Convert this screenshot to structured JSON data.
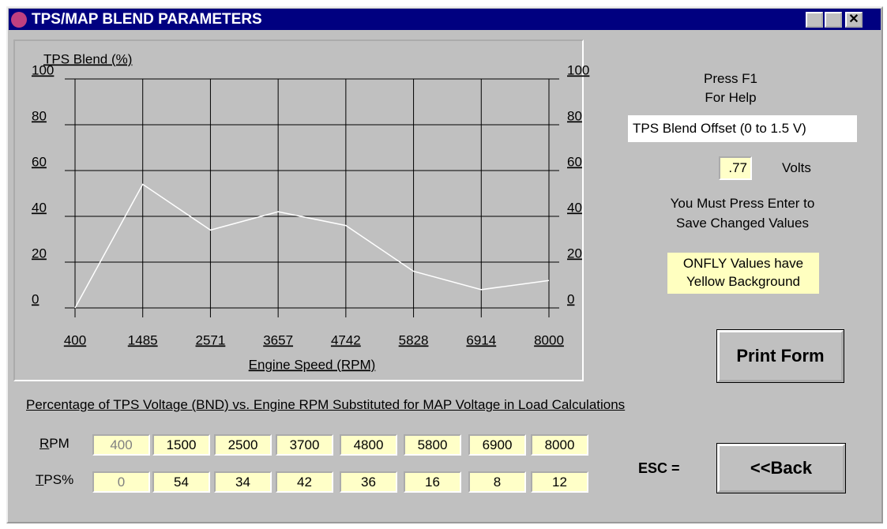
{
  "window": {
    "title": "TPS/MAP BLEND PARAMETERS"
  },
  "chart_data": {
    "type": "line",
    "ylabel": "TPS Blend (%)",
    "xlabel": "Engine Speed (RPM)",
    "categories": [
      "400",
      "1485",
      "2571",
      "3657",
      "4742",
      "5828",
      "6914",
      "8000"
    ],
    "values": [
      0,
      54,
      34,
      42,
      36,
      16,
      8,
      12
    ],
    "color": "#ffffff",
    "ylim": [
      0,
      100
    ],
    "yticks": [
      0,
      20,
      40,
      60,
      80,
      100
    ],
    "y2lim": [
      0,
      100
    ],
    "y2ticks": [
      0,
      20,
      40,
      60,
      80,
      100
    ],
    "grid": true
  },
  "help": [
    "Press F1",
    "For Help"
  ],
  "offset": {
    "label": "TPS Blend Offset (0 to 1.5 V)",
    "value": ".77",
    "unit": "Volts"
  },
  "notice": [
    "You Must Press Enter to",
    "Save Changed Values"
  ],
  "onfly": [
    "ONFLY Values have",
    "Yellow Background"
  ],
  "table": {
    "caption": "Percentage of TPS Voltage (BND) vs. Engine RPM Substituted for MAP Voltage in Load Calculations",
    "rows": [
      {
        "label": "RPM",
        "values": [
          400,
          1500,
          2500,
          3700,
          4800,
          5800,
          6900,
          8000
        ]
      },
      {
        "label": "TPS%",
        "values": [
          0,
          54,
          34,
          42,
          36,
          16,
          8,
          12
        ]
      }
    ]
  },
  "esc": "ESC =",
  "buttons": {
    "print": "Print Form",
    "back": "<<Back"
  }
}
